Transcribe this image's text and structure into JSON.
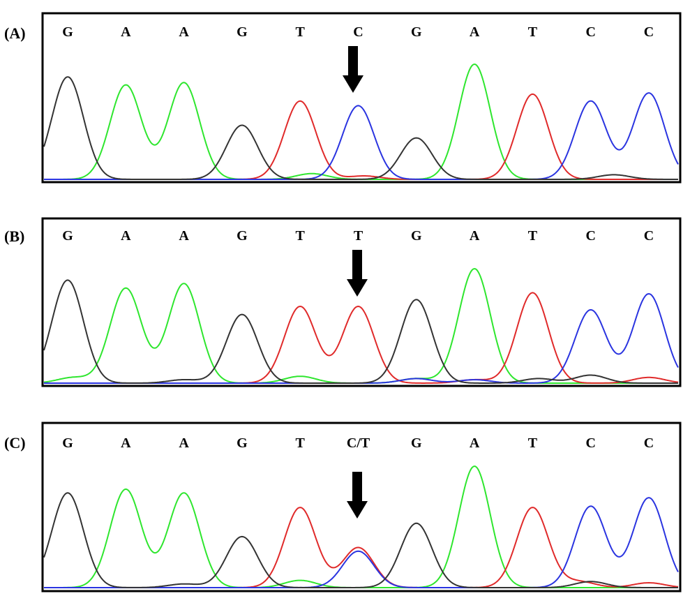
{
  "colors": {
    "G": "#333333",
    "A": "#2ee62e",
    "T": "#e02a2a",
    "C": "#2a34e0",
    "frame": "#000000",
    "arrow": "#000000"
  },
  "panels": [
    {
      "label": "(A)",
      "bases": [
        "G",
        "A",
        "A",
        "G",
        "T",
        "C",
        "G",
        "A",
        "T",
        "C",
        "C"
      ],
      "arrow_index": 5,
      "peaks": [
        {
          "base": "G",
          "height": 0.89
        },
        {
          "base": "A",
          "height": 0.82
        },
        {
          "base": "A",
          "height": 0.84
        },
        {
          "base": "G",
          "height": 0.47
        },
        {
          "base": "T",
          "height": 0.68
        },
        {
          "base": "C",
          "height": 0.64
        },
        {
          "base": "G",
          "height": 0.36
        },
        {
          "base": "A",
          "height": 1.0
        },
        {
          "base": "T",
          "height": 0.74
        },
        {
          "base": "C",
          "height": 0.68
        },
        {
          "base": "C",
          "height": 0.75
        }
      ],
      "minor_peaks": [
        {
          "base": "A",
          "pos": 4.2,
          "height": 0.05
        },
        {
          "base": "T",
          "pos": 5.1,
          "height": 0.03
        },
        {
          "base": "G",
          "pos": 9.4,
          "height": 0.04
        }
      ]
    },
    {
      "label": "(B)",
      "bases": [
        "G",
        "A",
        "A",
        "G",
        "T",
        "T",
        "G",
        "A",
        "T",
        "C",
        "C"
      ],
      "arrow_index": 5,
      "peaks": [
        {
          "base": "G",
          "height": 0.9
        },
        {
          "base": "A",
          "height": 0.83
        },
        {
          "base": "A",
          "height": 0.87
        },
        {
          "base": "G",
          "height": 0.6
        },
        {
          "base": "T",
          "height": 0.67
        },
        {
          "base": "T",
          "height": 0.67
        },
        {
          "base": "G",
          "height": 0.73
        },
        {
          "base": "A",
          "height": 1.0
        },
        {
          "base": "T",
          "height": 0.79
        },
        {
          "base": "C",
          "height": 0.64
        },
        {
          "base": "C",
          "height": 0.78
        }
      ],
      "minor_peaks": [
        {
          "base": "A",
          "pos": 0.1,
          "height": 0.05
        },
        {
          "base": "G",
          "pos": 2.0,
          "height": 0.03
        },
        {
          "base": "A",
          "pos": 4.0,
          "height": 0.06
        },
        {
          "base": "C",
          "pos": 6.0,
          "height": 0.04
        },
        {
          "base": "A",
          "pos": 6.0,
          "height": 0.04
        },
        {
          "base": "T",
          "pos": 7.0,
          "height": 0.03
        },
        {
          "base": "C",
          "pos": 7.0,
          "height": 0.03
        },
        {
          "base": "G",
          "pos": 8.1,
          "height": 0.04
        },
        {
          "base": "G",
          "pos": 9.0,
          "height": 0.07
        },
        {
          "base": "T",
          "pos": 10.0,
          "height": 0.05
        }
      ]
    },
    {
      "label": "(C)",
      "bases": [
        "G",
        "A",
        "A",
        "G",
        "T",
        "C/T",
        "G",
        "A",
        "T",
        "C",
        "C"
      ],
      "arrow_index": 5,
      "peaks": [
        {
          "base": "G",
          "height": 0.78
        },
        {
          "base": "A",
          "height": 0.81
        },
        {
          "base": "A",
          "height": 0.78
        },
        {
          "base": "G",
          "height": 0.42
        },
        {
          "base": "T",
          "height": 0.66
        },
        {
          "base": "T",
          "height": 0.33
        },
        {
          "base": "G",
          "height": 0.53
        },
        {
          "base": "A",
          "height": 1.0
        },
        {
          "base": "T",
          "height": 0.66
        },
        {
          "base": "C",
          "height": 0.67
        },
        {
          "base": "C",
          "height": 0.74
        }
      ],
      "minor_peaks": [
        {
          "base": "C",
          "pos": 5.0,
          "height": 0.3
        },
        {
          "base": "G",
          "pos": 2.0,
          "height": 0.03
        },
        {
          "base": "A",
          "pos": 4.0,
          "height": 0.06
        },
        {
          "base": "T",
          "pos": 8.8,
          "height": 0.05
        },
        {
          "base": "G",
          "pos": 9.0,
          "height": 0.05
        },
        {
          "base": "T",
          "pos": 10.0,
          "height": 0.04
        }
      ]
    }
  ]
}
